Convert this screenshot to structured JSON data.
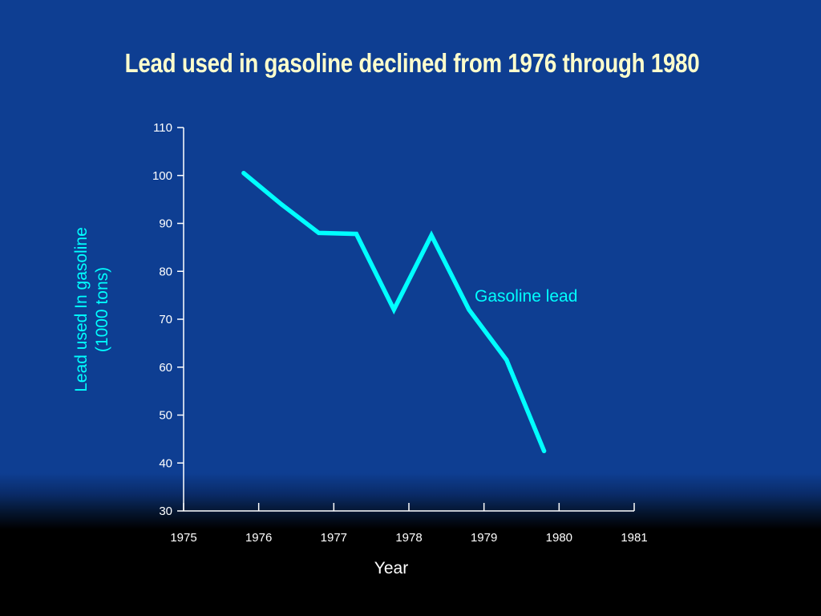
{
  "colors": {
    "background": "#0e3e92",
    "title": "#ffffcc",
    "axis": "#ffffff",
    "series": "#00ffff"
  },
  "chart_data": {
    "type": "line",
    "title": "Lead used in gasoline declined from 1976 through 1980",
    "xlabel": "Year",
    "ylabel": [
      "Lead used In gasoline",
      "(1000 tons)"
    ],
    "xlim": [
      1975,
      1981
    ],
    "ylim": [
      30,
      110
    ],
    "x_ticks": [
      "1975",
      "1976",
      "1977",
      "1978",
      "1979",
      "1980",
      "1981"
    ],
    "y_ticks": [
      "30",
      "40",
      "50",
      "60",
      "70",
      "80",
      "90",
      "100",
      "110"
    ],
    "grid": false,
    "legend": "none",
    "series": [
      {
        "name": "Gasoline lead",
        "x": [
          1975.8,
          1976.3,
          1976.8,
          1977.3,
          1977.8,
          1978.3,
          1978.8,
          1979.3,
          1979.8
        ],
        "y": [
          100.5,
          94,
          88,
          87.8,
          72,
          87.5,
          72,
          61.5,
          42.5
        ]
      }
    ]
  }
}
